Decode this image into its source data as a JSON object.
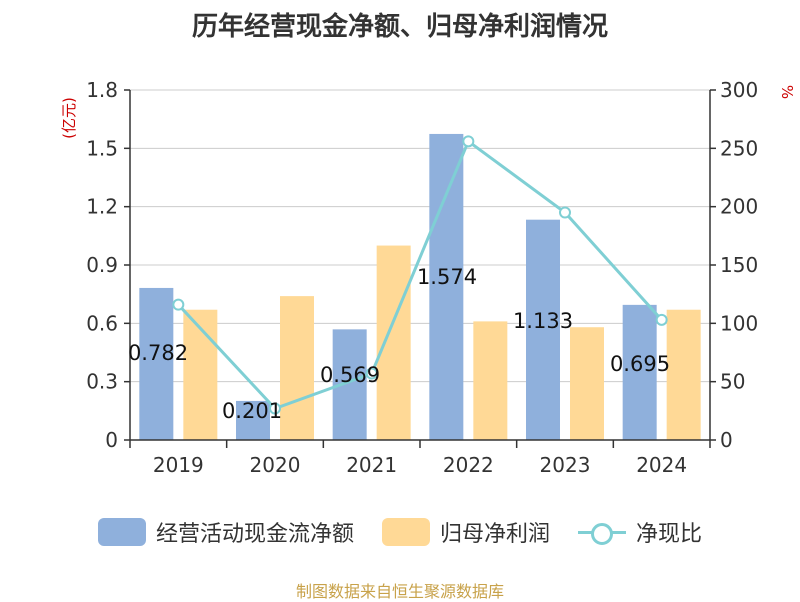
{
  "chart_data": {
    "type": "bar",
    "title": "历年经营现金净额、归母净利润情况",
    "categories": [
      "2019",
      "2020",
      "2021",
      "2022",
      "2023",
      "2024"
    ],
    "series": [
      {
        "name": "经营活动现金流净额",
        "type": "bar",
        "axis": "left",
        "color": "#8fb0dc",
        "values": [
          0.782,
          0.201,
          0.569,
          1.574,
          1.133,
          0.695
        ]
      },
      {
        "name": "归母净利润",
        "type": "bar",
        "axis": "left",
        "color": "#ffd996",
        "values": [
          0.67,
          0.74,
          1.0,
          0.61,
          0.58,
          0.67
        ]
      },
      {
        "name": "净现比",
        "type": "line",
        "axis": "right",
        "color": "#7fcfd4",
        "values": [
          116,
          27,
          57,
          256,
          195,
          103
        ]
      }
    ],
    "data_labels": [
      "0.782",
      "0.201",
      "0.569",
      "1.574",
      "1.133",
      "0.695"
    ],
    "ylabel": "(亿元)",
    "ylabel_right": "%",
    "ylim": [
      0,
      1.8
    ],
    "yticks": [
      "0",
      "0.3",
      "0.6",
      "0.9",
      "1.2",
      "1.5",
      "1.8"
    ],
    "ylim_right": [
      0,
      300
    ],
    "yticks_right": [
      "0",
      "50",
      "100",
      "150",
      "200",
      "250",
      "300"
    ],
    "grid": true,
    "legend_position": "bottom"
  },
  "source": "制图数据来自恒生聚源数据库"
}
